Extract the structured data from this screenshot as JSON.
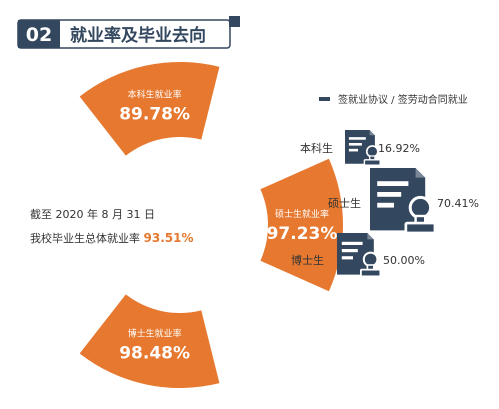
{
  "header": {
    "number": "02",
    "title": "就业率及毕业去向"
  },
  "colors": {
    "orange": "#e6782f",
    "navy": "#33475f",
    "text_dark": "#333333",
    "highlight": "#e6782f",
    "background": "#ffffff"
  },
  "summary": {
    "line1": "截至 2020 年 8 月 31 日",
    "line2_prefix": "我校毕业生总体就业率 ",
    "line2_value": "93.51%"
  },
  "legend": {
    "label": "签就业协议 / 签劳动合同就业"
  },
  "icons": {
    "contract": "contract-stamp-icon",
    "legend_marker": "navy-dash-icon"
  },
  "chart_data": [
    {
      "type": "pie",
      "title": "",
      "categories": [
        "本科生就业率",
        "硕士生就业率",
        "博士生就业率"
      ],
      "values": [
        89.78,
        97.23,
        98.48
      ],
      "value_labels": [
        "89.78%",
        "97.23%",
        "98.48%"
      ],
      "overall_rate": 93.51
    },
    {
      "type": "bar",
      "title": "",
      "series": [
        {
          "name": "签就业协议 / 签劳动合同就业",
          "values": [
            16.92,
            70.41,
            50.0
          ]
        }
      ],
      "categories": [
        "本科生",
        "硕士生",
        "博士生"
      ],
      "value_labels": [
        "16.92%",
        "70.41%",
        "50.00%"
      ]
    }
  ]
}
